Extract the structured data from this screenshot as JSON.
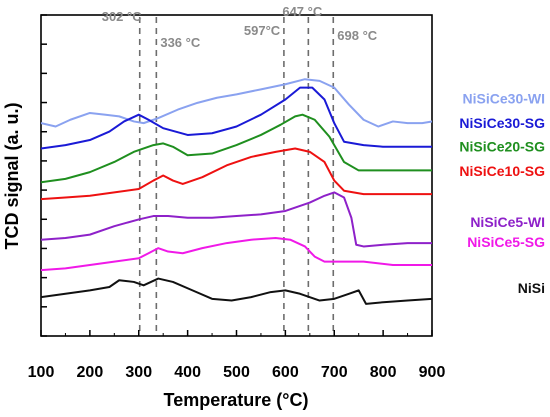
{
  "chart_data": {
    "type": "line",
    "title": "",
    "xlabel": "Temperature (°C)",
    "ylabel": "TCD signal (a. u.)",
    "xlim": [
      100,
      900
    ],
    "x_ticks": [
      100,
      200,
      300,
      400,
      500,
      600,
      700,
      800,
      900
    ],
    "y_ticks_labeled": false,
    "grid": false,
    "legend": "direct labels at right end of each curve",
    "reference_lines": [
      {
        "x": 302,
        "label": "302 °C"
      },
      {
        "x": 336,
        "label": "336 °C"
      },
      {
        "x": 597,
        "label": "597°C"
      },
      {
        "x": 647,
        "label": "647 °C"
      },
      {
        "x": 698,
        "label": "698 °C"
      }
    ],
    "series": [
      {
        "name": "NiSiCe30-WI",
        "color": "#8aa2f0",
        "points": [
          [
            100,
            0.81
          ],
          [
            130,
            0.79
          ],
          [
            160,
            0.83
          ],
          [
            200,
            0.87
          ],
          [
            230,
            0.86
          ],
          [
            260,
            0.85
          ],
          [
            290,
            0.82
          ],
          [
            310,
            0.81
          ],
          [
            340,
            0.84
          ],
          [
            380,
            0.89
          ],
          [
            420,
            0.93
          ],
          [
            460,
            0.96
          ],
          [
            500,
            0.98
          ],
          [
            550,
            1.01
          ],
          [
            600,
            1.04
          ],
          [
            640,
            1.07
          ],
          [
            670,
            1.06
          ],
          [
            700,
            1.02
          ],
          [
            730,
            0.92
          ],
          [
            760,
            0.83
          ],
          [
            790,
            0.79
          ],
          [
            820,
            0.82
          ],
          [
            850,
            0.81
          ],
          [
            880,
            0.81
          ],
          [
            900,
            0.82
          ]
        ]
      },
      {
        "name": "NiSiCe30-SG",
        "color": "#1a1ad6",
        "points": [
          [
            100,
            0.66
          ],
          [
            150,
            0.68
          ],
          [
            200,
            0.71
          ],
          [
            240,
            0.76
          ],
          [
            270,
            0.82
          ],
          [
            300,
            0.86
          ],
          [
            320,
            0.83
          ],
          [
            350,
            0.78
          ],
          [
            400,
            0.74
          ],
          [
            450,
            0.75
          ],
          [
            500,
            0.79
          ],
          [
            550,
            0.86
          ],
          [
            600,
            0.95
          ],
          [
            630,
            1.02
          ],
          [
            655,
            1.02
          ],
          [
            680,
            0.95
          ],
          [
            700,
            0.81
          ],
          [
            720,
            0.7
          ],
          [
            760,
            0.68
          ],
          [
            800,
            0.67
          ],
          [
            860,
            0.67
          ],
          [
            900,
            0.67
          ]
        ]
      },
      {
        "name": "NiSiCe20-SG",
        "color": "#1f8f1f",
        "points": [
          [
            100,
            0.46
          ],
          [
            150,
            0.48
          ],
          [
            200,
            0.52
          ],
          [
            250,
            0.58
          ],
          [
            290,
            0.64
          ],
          [
            330,
            0.68
          ],
          [
            350,
            0.69
          ],
          [
            370,
            0.67
          ],
          [
            400,
            0.62
          ],
          [
            450,
            0.63
          ],
          [
            500,
            0.68
          ],
          [
            550,
            0.74
          ],
          [
            590,
            0.8
          ],
          [
            620,
            0.85
          ],
          [
            635,
            0.86
          ],
          [
            660,
            0.83
          ],
          [
            690,
            0.73
          ],
          [
            720,
            0.58
          ],
          [
            750,
            0.53
          ],
          [
            800,
            0.53
          ],
          [
            860,
            0.53
          ],
          [
            900,
            0.53
          ]
        ]
      },
      {
        "name": "NiSiCe10-SG",
        "color": "#ee1111",
        "points": [
          [
            100,
            0.36
          ],
          [
            150,
            0.37
          ],
          [
            200,
            0.38
          ],
          [
            250,
            0.4
          ],
          [
            300,
            0.42
          ],
          [
            330,
            0.47
          ],
          [
            350,
            0.5
          ],
          [
            370,
            0.47
          ],
          [
            390,
            0.45
          ],
          [
            430,
            0.49
          ],
          [
            480,
            0.56
          ],
          [
            530,
            0.61
          ],
          [
            580,
            0.64
          ],
          [
            620,
            0.66
          ],
          [
            650,
            0.64
          ],
          [
            680,
            0.58
          ],
          [
            700,
            0.47
          ],
          [
            720,
            0.41
          ],
          [
            760,
            0.39
          ],
          [
            800,
            0.39
          ],
          [
            860,
            0.39
          ],
          [
            900,
            0.39
          ]
        ]
      },
      {
        "name": "NiSiCe5-WI",
        "color": "#8e21c9",
        "points": [
          [
            100,
            0.12
          ],
          [
            150,
            0.13
          ],
          [
            200,
            0.15
          ],
          [
            250,
            0.2
          ],
          [
            300,
            0.24
          ],
          [
            330,
            0.26
          ],
          [
            360,
            0.26
          ],
          [
            400,
            0.25
          ],
          [
            450,
            0.25
          ],
          [
            500,
            0.26
          ],
          [
            550,
            0.27
          ],
          [
            600,
            0.29
          ],
          [
            650,
            0.34
          ],
          [
            680,
            0.38
          ],
          [
            700,
            0.4
          ],
          [
            720,
            0.37
          ],
          [
            735,
            0.25
          ],
          [
            745,
            0.09
          ],
          [
            760,
            0.08
          ],
          [
            800,
            0.09
          ],
          [
            850,
            0.1
          ],
          [
            900,
            0.1
          ]
        ]
      },
      {
        "name": "NiSiCe5-SG",
        "color": "#f019e8",
        "points": [
          [
            100,
            -0.06
          ],
          [
            150,
            -0.05
          ],
          [
            200,
            -0.03
          ],
          [
            250,
            -0.01
          ],
          [
            300,
            0.01
          ],
          [
            320,
            0.04
          ],
          [
            340,
            0.07
          ],
          [
            360,
            0.05
          ],
          [
            390,
            0.04
          ],
          [
            430,
            0.07
          ],
          [
            480,
            0.1
          ],
          [
            530,
            0.12
          ],
          [
            580,
            0.13
          ],
          [
            610,
            0.12
          ],
          [
            640,
            0.08
          ],
          [
            660,
            0.02
          ],
          [
            680,
            -0.01
          ],
          [
            720,
            -0.01
          ],
          [
            760,
            -0.01
          ],
          [
            820,
            -0.03
          ],
          [
            860,
            -0.03
          ],
          [
            900,
            -0.03
          ]
        ]
      },
      {
        "name": "NiSi",
        "color": "#111111",
        "points": [
          [
            100,
            -0.22
          ],
          [
            150,
            -0.2
          ],
          [
            200,
            -0.18
          ],
          [
            240,
            -0.16
          ],
          [
            260,
            -0.12
          ],
          [
            290,
            -0.13
          ],
          [
            310,
            -0.15
          ],
          [
            340,
            -0.11
          ],
          [
            370,
            -0.13
          ],
          [
            410,
            -0.18
          ],
          [
            450,
            -0.23
          ],
          [
            490,
            -0.24
          ],
          [
            530,
            -0.22
          ],
          [
            570,
            -0.19
          ],
          [
            600,
            -0.18
          ],
          [
            630,
            -0.2
          ],
          [
            670,
            -0.24
          ],
          [
            700,
            -0.23
          ],
          [
            730,
            -0.2
          ],
          [
            750,
            -0.18
          ],
          [
            765,
            -0.26
          ],
          [
            800,
            -0.25
          ],
          [
            850,
            -0.24
          ],
          [
            900,
            -0.23
          ]
        ]
      }
    ]
  }
}
